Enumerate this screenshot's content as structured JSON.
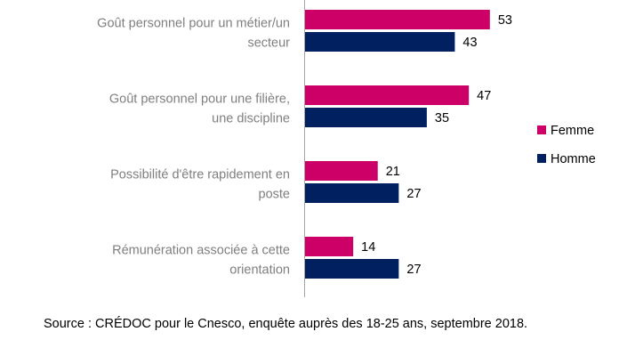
{
  "chart_data": {
    "type": "bar",
    "orientation": "horizontal",
    "categories": [
      [
        "Goût personnel pour un métier/un",
        "secteur"
      ],
      [
        "Goût personnel pour une filière,",
        "une discipline"
      ],
      [
        "Possibilité d'être rapidement en",
        "poste"
      ],
      [
        "Rémunération associée à cette",
        "orientation"
      ]
    ],
    "series": [
      {
        "name": "Femme",
        "values": [
          53,
          47,
          21,
          14
        ],
        "color": "#cc0066"
      },
      {
        "name": "Homme",
        "values": [
          43,
          35,
          27,
          27
        ],
        "color": "#002060"
      }
    ],
    "xlim": [
      0,
      60
    ],
    "grid": false,
    "data_labels": true,
    "legend_position": "right"
  },
  "source": "Source : CRÉDOC pour le Cnesco, enquête auprès des 18-25 ans, septembre 2018."
}
